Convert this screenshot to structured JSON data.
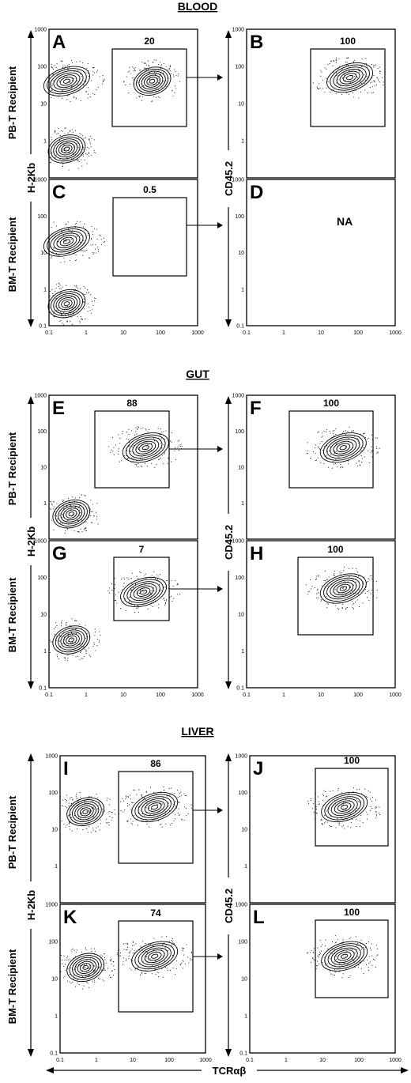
{
  "figure": {
    "sections": [
      "BLOOD",
      "GUT",
      "LIVER"
    ],
    "row_labels": {
      "pbt": "PB-T  Recipient",
      "bmt": "BM-T  Recipient"
    },
    "y_label_left": "H-2Kb",
    "y_label_right": "CD45.2",
    "x_label": "TCRαβ",
    "tick_labels": [
      "0.1",
      "1",
      "10",
      "100",
      "1000"
    ],
    "na_text": "NA"
  },
  "chart_data": [
    {
      "type": "scatter",
      "panel": "A",
      "section": "BLOOD",
      "recipient": "PB-T Recipient",
      "xlabel": "",
      "ylabel": "H-2Kb",
      "gate_percent": "20",
      "populations": [
        {
          "x": 0.3,
          "y": 40
        },
        {
          "x": 60,
          "y": 40
        },
        {
          "x": 0.3,
          "y": 0.6
        }
      ]
    },
    {
      "type": "scatter",
      "panel": "B",
      "section": "BLOOD",
      "recipient": "PB-T Recipient",
      "xlabel": "",
      "ylabel": "CD45.2",
      "gate_percent": "100",
      "populations": [
        {
          "x": 60,
          "y": 50
        }
      ]
    },
    {
      "type": "scatter",
      "panel": "C",
      "section": "BLOOD",
      "recipient": "BM-T Recipient",
      "xlabel": "",
      "ylabel": "H-2Kb",
      "gate_percent": "0.5",
      "populations": [
        {
          "x": 0.3,
          "y": 20
        },
        {
          "x": 0.3,
          "y": 0.4
        }
      ]
    },
    {
      "type": "scatter",
      "panel": "D",
      "section": "BLOOD",
      "recipient": "BM-T Recipient",
      "xlabel": "",
      "ylabel": "CD45.2",
      "gate_percent": "",
      "note": "NA",
      "populations": []
    },
    {
      "type": "scatter",
      "panel": "E",
      "section": "GUT",
      "recipient": "PB-T Recipient",
      "xlabel": "",
      "ylabel": "H-2Kb",
      "gate_percent": "88",
      "populations": [
        {
          "x": 40,
          "y": 35
        },
        {
          "x": 0.4,
          "y": 0.5
        }
      ]
    },
    {
      "type": "scatter",
      "panel": "F",
      "section": "GUT",
      "recipient": "PB-T Recipient",
      "xlabel": "",
      "ylabel": "CD45.2",
      "gate_percent": "100",
      "populations": [
        {
          "x": 40,
          "y": 35
        }
      ]
    },
    {
      "type": "scatter",
      "panel": "G",
      "section": "GUT",
      "recipient": "BM-T Recipient",
      "xlabel": "",
      "ylabel": "H-2Kb",
      "gate_percent": "7",
      "populations": [
        {
          "x": 35,
          "y": 40
        },
        {
          "x": 0.4,
          "y": 2
        }
      ]
    },
    {
      "type": "scatter",
      "panel": "H",
      "section": "GUT",
      "recipient": "BM-T Recipient",
      "xlabel": "",
      "ylabel": "CD45.2",
      "gate_percent": "100",
      "populations": [
        {
          "x": 40,
          "y": 50
        }
      ]
    },
    {
      "type": "scatter",
      "panel": "I",
      "section": "LIVER",
      "recipient": "PB-T Recipient",
      "xlabel": "",
      "ylabel": "H-2Kb",
      "gate_percent": "86",
      "populations": [
        {
          "x": 40,
          "y": 40
        },
        {
          "x": 0.5,
          "y": 30
        }
      ]
    },
    {
      "type": "scatter",
      "panel": "J",
      "section": "LIVER",
      "recipient": "PB-T Recipient",
      "xlabel": "",
      "ylabel": "CD45.2",
      "gate_percent": "100",
      "populations": [
        {
          "x": 40,
          "y": 40
        }
      ]
    },
    {
      "type": "scatter",
      "panel": "K",
      "section": "LIVER",
      "recipient": "BM-T Recipient",
      "xlabel": "TCRαβ",
      "ylabel": "H-2Kb",
      "gate_percent": "74",
      "populations": [
        {
          "x": 40,
          "y": 40
        },
        {
          "x": 0.5,
          "y": 20
        }
      ]
    },
    {
      "type": "scatter",
      "panel": "L",
      "section": "LIVER",
      "recipient": "BM-T Recipient",
      "xlabel": "TCRαβ",
      "ylabel": "CD45.2",
      "gate_percent": "100",
      "populations": [
        {
          "x": 40,
          "y": 40
        }
      ]
    }
  ]
}
